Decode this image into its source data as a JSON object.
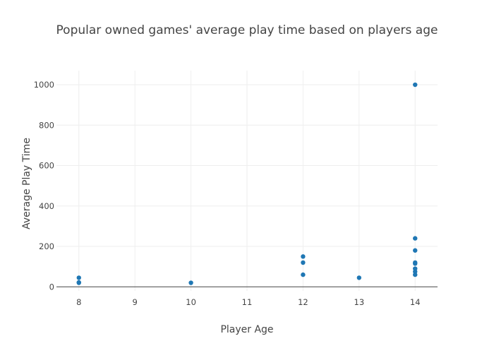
{
  "chart_data": {
    "type": "scatter",
    "title": "Popular owned games' average play time based on players age",
    "xlabel": "Player Age",
    "ylabel": "Average Play Time",
    "xlim": [
      7.6,
      14.4
    ],
    "ylim": [
      -20,
      1070
    ],
    "x_ticks": [
      8,
      9,
      10,
      11,
      12,
      13,
      14
    ],
    "y_ticks": [
      0,
      200,
      400,
      600,
      800,
      1000
    ],
    "grid": true,
    "marker_color": "#1f77b4",
    "series": [
      {
        "points": [
          {
            "x": 8,
            "y": 45
          },
          {
            "x": 8,
            "y": 20
          },
          {
            "x": 8,
            "y": 22
          },
          {
            "x": 10,
            "y": 20
          },
          {
            "x": 12,
            "y": 150
          },
          {
            "x": 12,
            "y": 120
          },
          {
            "x": 12,
            "y": 60
          },
          {
            "x": 13,
            "y": 45
          },
          {
            "x": 14,
            "y": 1000
          },
          {
            "x": 14,
            "y": 240
          },
          {
            "x": 14,
            "y": 180
          },
          {
            "x": 14,
            "y": 120
          },
          {
            "x": 14,
            "y": 115
          },
          {
            "x": 14,
            "y": 90
          },
          {
            "x": 14,
            "y": 75
          },
          {
            "x": 14,
            "y": 60
          }
        ]
      }
    ]
  }
}
